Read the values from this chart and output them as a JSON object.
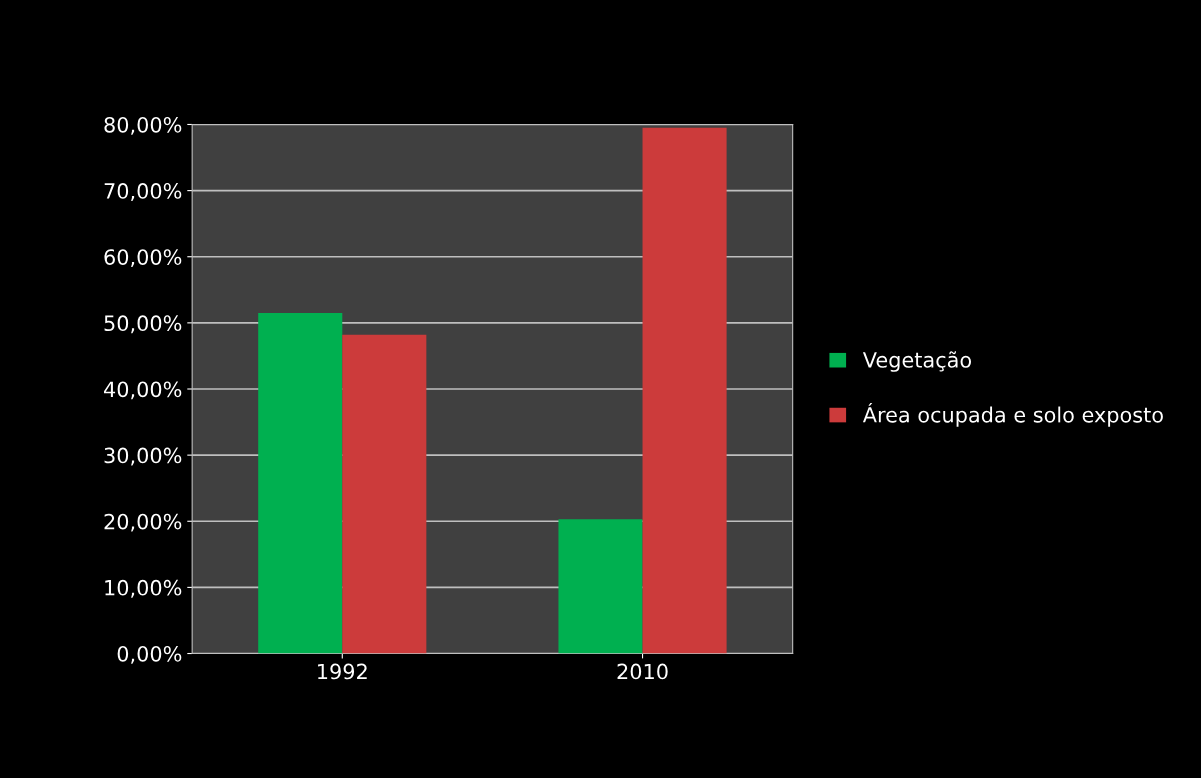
{
  "chart_data": {
    "type": "bar",
    "categories": [
      "1992",
      "2010"
    ],
    "series": [
      {
        "name": "Vegetação",
        "color": "#00b050",
        "values": [
          51.5,
          20.3
        ]
      },
      {
        "name": "Área ocupada e solo exposto",
        "color": "#cc3b3b",
        "values": [
          48.2,
          79.5
        ]
      }
    ],
    "ylim": [
      0,
      80
    ],
    "yticks": [
      {
        "value": 0,
        "label": "0,00%"
      },
      {
        "value": 10,
        "label": "10,00%"
      },
      {
        "value": 20,
        "label": "20,00%"
      },
      {
        "value": 30,
        "label": "30,00%"
      },
      {
        "value": 40,
        "label": "40,00%"
      },
      {
        "value": 50,
        "label": "50,00%"
      },
      {
        "value": 60,
        "label": "60,00%"
      },
      {
        "value": 70,
        "label": "70,00%"
      },
      {
        "value": 80,
        "label": "80,00%"
      }
    ],
    "grid": "y",
    "legend": "right"
  }
}
